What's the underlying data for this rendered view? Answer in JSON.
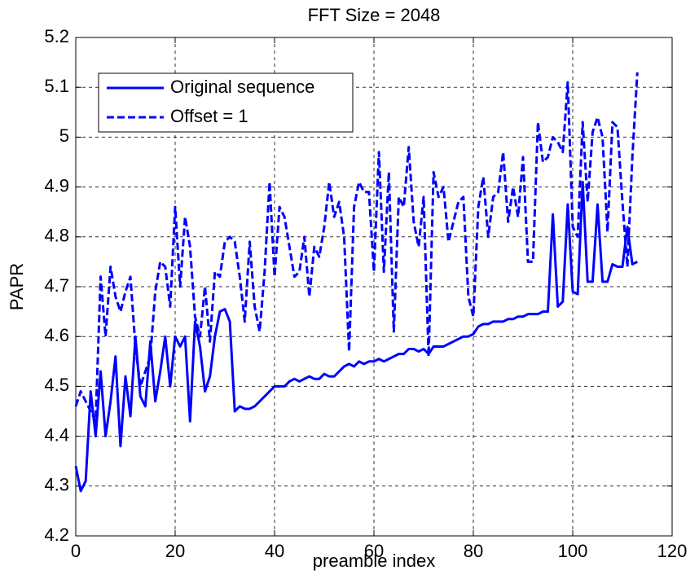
{
  "chart_data": {
    "type": "line",
    "title": "FFT Size = 2048",
    "x_label": "preamble index",
    "y_label": "PAPR",
    "x": [
      0,
      1,
      2,
      3,
      4,
      5,
      6,
      7,
      8,
      9,
      10,
      11,
      12,
      13,
      14,
      15,
      16,
      17,
      18,
      19,
      20,
      21,
      22,
      23,
      24,
      25,
      26,
      27,
      28,
      29,
      30,
      31,
      32,
      33,
      34,
      35,
      36,
      37,
      38,
      39,
      40,
      41,
      42,
      43,
      44,
      45,
      46,
      47,
      48,
      49,
      50,
      51,
      52,
      53,
      54,
      55,
      56,
      57,
      58,
      59,
      60,
      61,
      62,
      63,
      64,
      65,
      66,
      67,
      68,
      69,
      70,
      71,
      72,
      73,
      74,
      75,
      76,
      77,
      78,
      79,
      80,
      81,
      82,
      83,
      84,
      85,
      86,
      87,
      88,
      89,
      90,
      91,
      92,
      93,
      94,
      95,
      96,
      97,
      98,
      99,
      100,
      101,
      102,
      103,
      104,
      105,
      106,
      107,
      108,
      109,
      110,
      111,
      112,
      113
    ],
    "series": [
      {
        "name": "Original sequence",
        "color": "#0000ff",
        "dash": false,
        "values": [
          4.34,
          4.29,
          4.31,
          4.49,
          4.4,
          4.53,
          4.4,
          4.47,
          4.56,
          4.38,
          4.52,
          4.44,
          4.6,
          4.48,
          4.46,
          4.59,
          4.47,
          4.53,
          4.6,
          4.5,
          4.6,
          4.58,
          4.6,
          4.43,
          4.63,
          4.58,
          4.49,
          4.52,
          4.6,
          4.65,
          4.655,
          4.63,
          4.45,
          4.46,
          4.455,
          4.455,
          4.46,
          4.47,
          4.48,
          4.49,
          4.5,
          4.5,
          4.5,
          4.51,
          4.515,
          4.51,
          4.515,
          4.52,
          4.515,
          4.515,
          4.525,
          4.52,
          4.52,
          4.53,
          4.54,
          4.545,
          4.54,
          4.55,
          4.545,
          4.55,
          4.55,
          4.555,
          4.55,
          4.555,
          4.56,
          4.565,
          4.565,
          4.575,
          4.575,
          4.57,
          4.575,
          4.565,
          4.58,
          4.58,
          4.58,
          4.585,
          4.59,
          4.595,
          4.6,
          4.6,
          4.605,
          4.62,
          4.625,
          4.625,
          4.63,
          4.63,
          4.63,
          4.635,
          4.635,
          4.64,
          4.64,
          4.645,
          4.645,
          4.645,
          4.65,
          4.65,
          4.845,
          4.66,
          4.67,
          4.865,
          4.69,
          4.685,
          4.91,
          4.71,
          4.71,
          4.865,
          4.71,
          4.71,
          4.745,
          4.74,
          4.74,
          4.82,
          4.745,
          4.75
        ]
      },
      {
        "name": "Offset = 1",
        "color": "#0000ff",
        "dash": true,
        "values": [
          4.46,
          4.49,
          4.47,
          4.45,
          4.43,
          4.72,
          4.6,
          4.74,
          4.68,
          4.65,
          4.69,
          4.72,
          4.58,
          4.5,
          4.53,
          4.56,
          4.69,
          4.75,
          4.74,
          4.66,
          4.86,
          4.7,
          4.84,
          4.78,
          4.64,
          4.6,
          4.7,
          4.59,
          4.73,
          4.72,
          4.79,
          4.8,
          4.79,
          4.72,
          4.63,
          4.79,
          4.66,
          4.61,
          4.73,
          4.91,
          4.72,
          4.86,
          4.84,
          4.78,
          4.72,
          4.73,
          4.8,
          4.68,
          4.78,
          4.76,
          4.82,
          4.91,
          4.84,
          4.87,
          4.8,
          4.57,
          4.86,
          4.91,
          4.89,
          4.89,
          4.73,
          4.97,
          4.73,
          4.93,
          4.61,
          4.88,
          4.86,
          4.98,
          4.83,
          4.78,
          4.88,
          4.56,
          4.93,
          4.88,
          4.9,
          4.79,
          4.83,
          4.87,
          4.88,
          4.68,
          4.64,
          4.86,
          4.92,
          4.8,
          4.88,
          4.89,
          4.97,
          4.83,
          4.9,
          4.84,
          4.96,
          4.75,
          4.75,
          5.03,
          4.95,
          4.96,
          5.0,
          4.99,
          4.97,
          5.11,
          4.82,
          4.8,
          5.03,
          4.87,
          5.01,
          5.04,
          5.0,
          4.81,
          5.03,
          5.02,
          4.87,
          4.74,
          4.96,
          5.13
        ]
      }
    ],
    "xlim": [
      0,
      120
    ],
    "xticks": [
      0,
      20,
      40,
      60,
      80,
      100,
      120
    ],
    "ylim": [
      4.2,
      5.2
    ],
    "yticks": [
      4.2,
      4.3,
      4.4,
      4.5,
      4.6,
      4.7,
      4.8,
      4.9,
      5,
      5.1,
      5.2
    ],
    "grid": true,
    "legend": "upper left"
  }
}
